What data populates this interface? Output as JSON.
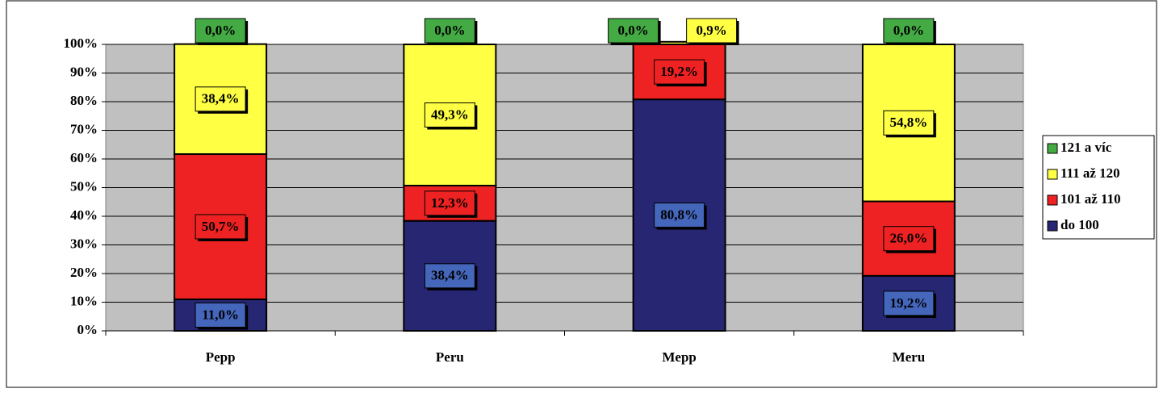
{
  "chart_data": {
    "type": "stacked_bar",
    "categories": [
      "Pepp",
      "Peru",
      "Mepp",
      "Meru"
    ],
    "series": [
      {
        "name": "do 100",
        "color": "#262673",
        "label_color": "#4466bb",
        "values": [
          11.0,
          38.4,
          80.8,
          19.2
        ],
        "value_labels": [
          "11,0%",
          "38,4%",
          "80,8%",
          "19,2%"
        ]
      },
      {
        "name": "101 až 110",
        "color": "#ee2222",
        "label_color": "#ee2222",
        "values": [
          50.7,
          12.3,
          19.2,
          26.0
        ],
        "value_labels": [
          "50,7%",
          "12,3%",
          "19,2%",
          "26,0%"
        ]
      },
      {
        "name": "111 až 120",
        "color": "#ffff44",
        "label_color": "#ffff44",
        "values": [
          38.4,
          49.3,
          0.9,
          54.8
        ],
        "value_labels": [
          "38,4%",
          "49,3%",
          "0,9%",
          "54,8%"
        ]
      },
      {
        "name": "121 a víc",
        "color": "#44aa44",
        "label_color": "#44aa44",
        "values": [
          0.0,
          0.0,
          0.0,
          0.0
        ],
        "value_labels": [
          "0,0%",
          "0,0%",
          "0,0%",
          "0,0%"
        ]
      }
    ],
    "ylim": [
      0,
      100
    ],
    "yticks": [
      {
        "value": 0,
        "label": "0%"
      },
      {
        "value": 10,
        "label": "10%"
      },
      {
        "value": 20,
        "label": "20%"
      },
      {
        "value": 30,
        "label": "30%"
      },
      {
        "value": 40,
        "label": "40%"
      },
      {
        "value": 50,
        "label": "50%"
      },
      {
        "value": 60,
        "label": "60%"
      },
      {
        "value": 70,
        "label": "70%"
      },
      {
        "value": 80,
        "label": "80%"
      },
      {
        "value": 90,
        "label": "90%"
      },
      {
        "value": 100,
        "label": "100%"
      }
    ],
    "grid": true,
    "legend": "right"
  }
}
